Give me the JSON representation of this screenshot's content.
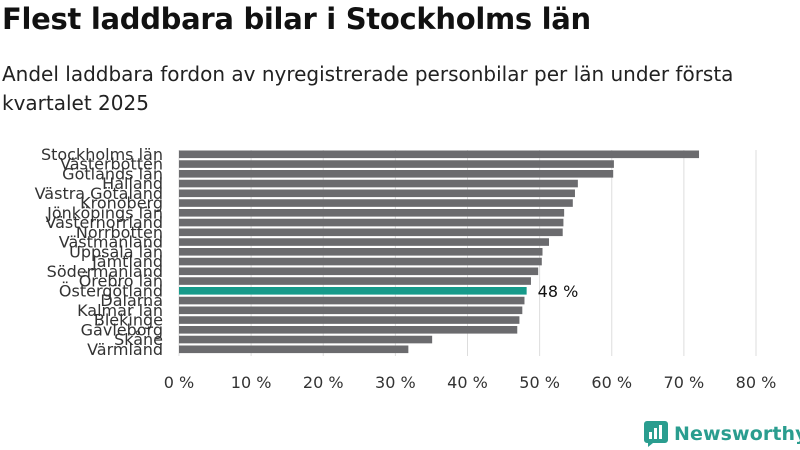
{
  "title": "Flest laddbara bilar i Stockholms län",
  "subtitle": "Andel laddbara fordon av nyregistrerade personbilar per län under första kvartalet 2025",
  "logo_text": "Newsworthy",
  "colors": {
    "bar": "#6b6b6e",
    "highlight": "#169a8a",
    "grid": "#dddddd",
    "logo": "#2a9d8f"
  },
  "chart_data": {
    "type": "bar",
    "orientation": "horizontal",
    "categories": [
      "Stockholms län",
      "Västerbotten",
      "Gotlands län",
      "Halland",
      "Västra Götaland",
      "Kronoberg",
      "Jönköpings län",
      "Västernorrland",
      "Norrbotten",
      "Västmanland",
      "Uppsala län",
      "Jämtland",
      "Södermanland",
      "Örebro län",
      "Östergötland",
      "Dalarna",
      "Kalmar län",
      "Blekinge",
      "Gävleborg",
      "Skåne",
      "Värmland"
    ],
    "values": [
      72.1,
      60.3,
      60.2,
      55.3,
      54.9,
      54.6,
      53.4,
      53.3,
      53.2,
      51.3,
      50.4,
      50.3,
      49.8,
      48.8,
      48.2,
      47.9,
      47.6,
      47.2,
      46.9,
      35.1,
      31.8
    ],
    "highlight_category": "Östergötland",
    "highlight_label": "48 %",
    "xlim": [
      0,
      80
    ],
    "xticks": [
      0,
      10,
      20,
      30,
      40,
      50,
      60,
      70,
      80
    ],
    "xtick_labels": [
      "0 %",
      "10 %",
      "20 %",
      "30 %",
      "40 %",
      "50 %",
      "60 %",
      "70 %",
      "80 %"
    ],
    "grid": true,
    "legend": "none"
  }
}
